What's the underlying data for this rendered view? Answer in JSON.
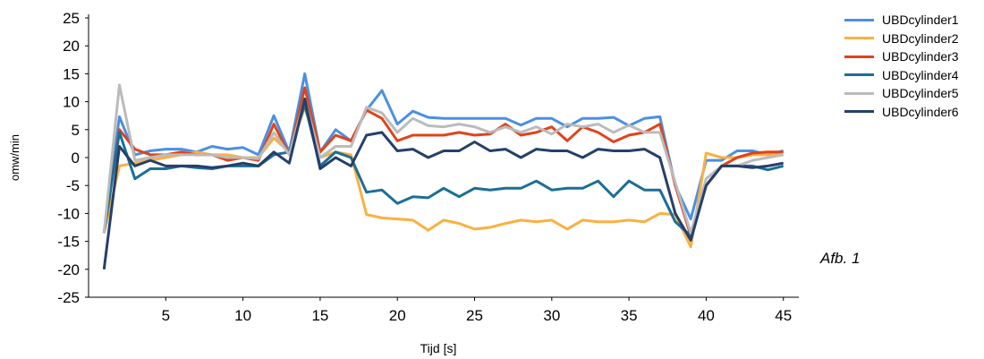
{
  "caption": "Afb. 1",
  "chart_data": {
    "type": "line",
    "title": "",
    "xlabel": "Tijd [s]",
    "ylabel": "omw/min",
    "xlim": [
      0,
      46
    ],
    "ylim": [
      -25,
      25
    ],
    "xticks": [
      5,
      10,
      15,
      20,
      25,
      30,
      35,
      40,
      45
    ],
    "yticks": [
      25,
      20,
      15,
      10,
      5,
      0,
      -5,
      -10,
      -15,
      -20,
      -25
    ],
    "x": [
      1,
      2,
      3,
      4,
      5,
      6,
      7,
      8,
      9,
      10,
      11,
      12,
      13,
      14,
      15,
      16,
      17,
      18,
      19,
      20,
      21,
      22,
      23,
      24,
      25,
      26,
      27,
      28,
      29,
      30,
      31,
      32,
      33,
      34,
      35,
      36,
      37,
      38,
      39,
      40,
      41,
      42,
      43,
      44,
      45
    ],
    "legend_position": "right",
    "series": [
      {
        "name": "UBDcylinder1",
        "color": "#4a90e2",
        "values": [
          -13.5,
          7.3,
          0.5,
          1.2,
          1.5,
          1.5,
          1.0,
          2.0,
          1.5,
          1.8,
          0.5,
          7.5,
          1.0,
          15.0,
          1.0,
          5.0,
          3.0,
          8.5,
          12.0,
          6.0,
          8.3,
          7.2,
          7.0,
          7.0,
          7.0,
          7.0,
          7.0,
          5.8,
          7.0,
          7.0,
          5.5,
          7.0,
          7.0,
          7.2,
          5.7,
          7.0,
          7.3,
          -5.0,
          -11.0,
          -0.5,
          -0.5,
          1.2,
          1.2,
          0.5,
          1.2
        ]
      },
      {
        "name": "UBDcylinder2",
        "color": "#fbb040",
        "values": [
          -13.5,
          -1.5,
          -1.0,
          -0.5,
          0.0,
          0.5,
          1.0,
          0.5,
          0.5,
          0.0,
          0.0,
          3.5,
          1.0,
          9.0,
          0.0,
          1.0,
          0.5,
          -10.2,
          -10.8,
          -11.0,
          -11.2,
          -13.0,
          -11.2,
          -11.8,
          -12.8,
          -12.5,
          -11.8,
          -11.2,
          -11.5,
          -11.2,
          -12.8,
          -11.2,
          -11.5,
          -11.5,
          -11.2,
          -11.5,
          -10.0,
          -10.2,
          -16.0,
          0.8,
          0.0,
          0.0,
          0.5,
          0.5,
          0.5
        ]
      },
      {
        "name": "UBDcylinder3",
        "color": "#e0431b",
        "values": [
          -13.5,
          5.0,
          1.5,
          0.5,
          0.5,
          1.0,
          0.5,
          0.5,
          -0.5,
          0.0,
          -0.5,
          6.0,
          0.5,
          12.5,
          1.0,
          4.0,
          3.0,
          8.5,
          7.0,
          3.0,
          4.0,
          4.0,
          4.0,
          4.5,
          4.0,
          4.2,
          6.0,
          4.0,
          4.5,
          5.5,
          3.0,
          5.5,
          4.5,
          2.8,
          4.0,
          4.5,
          6.0,
          -5.0,
          -14.0,
          -5.0,
          -1.5,
          0.0,
          0.8,
          1.0,
          1.0
        ]
      },
      {
        "name": "UBDcylinder4",
        "color": "#1a6f96",
        "values": [
          -13.5,
          4.5,
          -3.8,
          -2.0,
          -2.0,
          -1.5,
          -1.8,
          -2.0,
          -1.5,
          -1.5,
          -1.5,
          0.5,
          1.0,
          9.5,
          -1.5,
          1.0,
          0.0,
          -6.2,
          -5.8,
          -8.2,
          -7.0,
          -7.2,
          -5.5,
          -7.0,
          -5.5,
          -5.8,
          -5.5,
          -5.5,
          -4.2,
          -5.8,
          -5.5,
          -5.5,
          -4.2,
          -7.0,
          -4.2,
          -5.8,
          -5.8,
          -11.5,
          -14.0,
          -5.0,
          -1.5,
          -1.5,
          -1.5,
          -2.2,
          -1.5
        ]
      },
      {
        "name": "UBDcylinder5",
        "color": "#bbbbbb",
        "values": [
          -13.5,
          13.0,
          -0.5,
          0.0,
          0.5,
          0.5,
          0.5,
          0.5,
          0.0,
          0.0,
          -0.2,
          4.5,
          0.5,
          10.5,
          0.0,
          2.0,
          2.0,
          9.0,
          8.0,
          4.5,
          7.0,
          5.7,
          5.5,
          6.0,
          5.5,
          4.5,
          5.5,
          4.5,
          5.5,
          4.2,
          6.0,
          5.5,
          6.0,
          4.5,
          5.8,
          4.5,
          4.5,
          -4.5,
          -13.5,
          -3.8,
          -1.5,
          -1.5,
          -0.5,
          0.0,
          0.5
        ]
      },
      {
        "name": "UBDcylinder6",
        "color": "#253f6a",
        "values": [
          -20.0,
          2.0,
          -1.5,
          -0.5,
          -1.5,
          -1.5,
          -1.5,
          -1.8,
          -1.5,
          -1.0,
          -1.5,
          1.0,
          -1.0,
          10.5,
          -2.0,
          0.0,
          -1.5,
          4.0,
          4.5,
          1.2,
          1.5,
          0.0,
          1.2,
          1.2,
          2.8,
          1.2,
          1.5,
          0.0,
          1.5,
          1.2,
          1.2,
          0.0,
          1.5,
          1.2,
          1.2,
          1.5,
          0.0,
          -10.0,
          -14.8,
          -5.0,
          -1.5,
          -1.5,
          -1.8,
          -1.5,
          -1.0
        ]
      }
    ]
  }
}
